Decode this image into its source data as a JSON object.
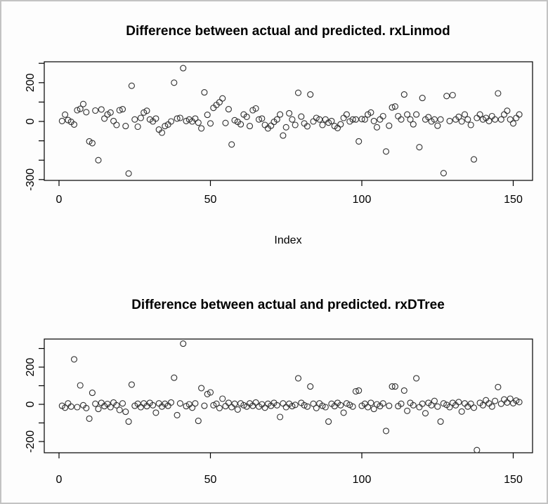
{
  "window": {
    "background_color": "#fdfdfd",
    "border_color": "#c3c3c3"
  },
  "chart_data": [
    {
      "type": "scatter",
      "title": "Difference between actual and predicted. rxLinmod",
      "xlabel": "Index",
      "ylabel": "",
      "marker": "open-circle",
      "marker_color": "#303030",
      "x_description": "observation index, one point per index 1..152",
      "xlim": [
        0,
        155
      ],
      "ylim": [
        -305,
        310
      ],
      "grid": false,
      "xticks": [
        0,
        50,
        100,
        150
      ],
      "xtick_labels": [
        "0",
        "50",
        "100",
        "150"
      ],
      "yticks": [
        300,
        200,
        100,
        0,
        -100,
        -200,
        -300
      ],
      "ytick_labels": [
        "",
        "200",
        "",
        "0",
        "",
        "",
        "-300"
      ],
      "values": [
        2,
        35,
        7,
        -2,
        -16,
        58,
        65,
        90,
        48,
        -103,
        -112,
        56,
        -200,
        62,
        15,
        36,
        46,
        2,
        -18,
        58,
        63,
        -24,
        -269,
        184,
        10,
        -27,
        18,
        46,
        55,
        10,
        0,
        15,
        -42,
        -58,
        -24,
        -16,
        0,
        200,
        15,
        18,
        275,
        2,
        10,
        0,
        15,
        -6,
        -36,
        150,
        34,
        -10,
        70,
        85,
        99,
        119,
        -8,
        63,
        -119,
        6,
        -2,
        -15,
        36,
        24,
        -24,
        58,
        67,
        10,
        15,
        -18,
        -36,
        -22,
        -2,
        10,
        36,
        -73,
        -30,
        42,
        10,
        -18,
        148,
        25,
        -10,
        -25,
        139,
        0,
        18,
        10,
        -18,
        10,
        -6,
        2,
        -24,
        -34,
        -15,
        18,
        36,
        0,
        10,
        10,
        -103,
        12,
        10,
        36,
        46,
        2,
        -30,
        10,
        27,
        -155,
        -22,
        72,
        77,
        27,
        10,
        139,
        36,
        10,
        -15,
        36,
        -133,
        121,
        10,
        22,
        0,
        10,
        -22,
        10,
        -267,
        131,
        2,
        136,
        10,
        24,
        0,
        36,
        10,
        -18,
        -196,
        18,
        36,
        10,
        18,
        2,
        27,
        10,
        145,
        10,
        36,
        55,
        10,
        -10,
        18,
        36
      ]
    },
    {
      "type": "scatter",
      "title": "Difference between actual and predicted. rxDTree",
      "xlabel": "",
      "ylabel": "",
      "marker": "open-circle",
      "marker_color": "#303030",
      "x_description": "observation index, one point per index 1..152",
      "xlim": [
        0,
        155
      ],
      "ylim": [
        -260,
        350
      ],
      "grid": false,
      "xticks": [
        0,
        50,
        100,
        150
      ],
      "xtick_labels": [
        "0",
        "50",
        "100",
        "150"
      ],
      "yticks": [
        300,
        200,
        100,
        0,
        -100,
        -200
      ],
      "ytick_labels": [
        "",
        "200",
        "",
        "0",
        "",
        "-200"
      ],
      "values": [
        -8,
        -18,
        5,
        -12,
        242,
        -15,
        102,
        -5,
        -20,
        -77,
        62,
        3,
        -25,
        8,
        -10,
        2,
        -15,
        10,
        -5,
        -30,
        5,
        -40,
        -93,
        106,
        -8,
        3,
        -15,
        5,
        -10,
        8,
        -5,
        -45,
        5,
        -12,
        3,
        -8,
        10,
        143,
        -58,
        5,
        326,
        -10,
        0,
        -18,
        5,
        -89,
        87,
        -8,
        55,
        64,
        -5,
        3,
        -20,
        30,
        -10,
        8,
        -15,
        3,
        -28,
        5,
        -5,
        -12,
        5,
        -8,
        10,
        -12,
        0,
        -18,
        3,
        -8,
        8,
        -5,
        -68,
        5,
        -15,
        3,
        -10,
        -3,
        140,
        8,
        -5,
        -12,
        96,
        3,
        -20,
        5,
        -8,
        -15,
        -93,
        3,
        -10,
        8,
        -5,
        -45,
        5,
        -3,
        -12,
        70,
        74,
        -8,
        3,
        -15,
        8,
        -25,
        0,
        -10,
        5,
        -143,
        -8,
        96,
        96,
        -10,
        3,
        74,
        -35,
        8,
        -5,
        140,
        -15,
        3,
        -48,
        8,
        -5,
        18,
        -12,
        -93,
        5,
        -3,
        -15,
        8,
        -5,
        12,
        -39,
        5,
        -12,
        3,
        -18,
        -246,
        8,
        -5,
        22,
        5,
        -12,
        18,
        93,
        3,
        26,
        10,
        30,
        6,
        20,
        12
      ]
    }
  ]
}
